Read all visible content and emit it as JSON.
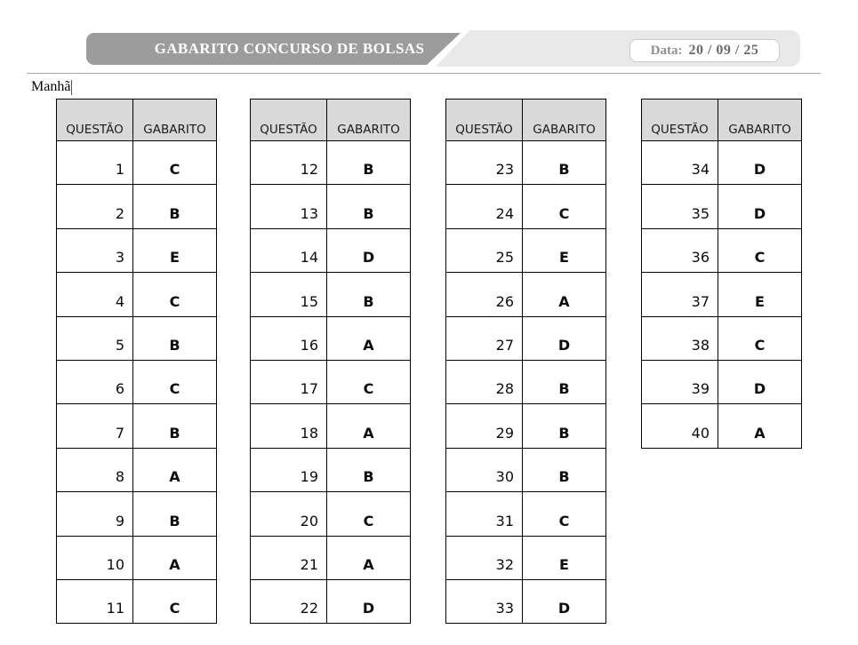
{
  "banner": {
    "title": "GABARITO CONCURSO DE BOLSAS"
  },
  "date": {
    "label": "Data:",
    "value": "20 / 09 / 25"
  },
  "shift_label": "Manhã",
  "columns": {
    "question": "QUESTÃO",
    "answer": "GABARITO"
  },
  "tables": [
    {
      "rows": [
        {
          "q": "1",
          "a": "C"
        },
        {
          "q": "2",
          "a": "B"
        },
        {
          "q": "3",
          "a": "E"
        },
        {
          "q": "4",
          "a": "C"
        },
        {
          "q": "5",
          "a": "B"
        },
        {
          "q": "6",
          "a": "C"
        },
        {
          "q": "7",
          "a": "B"
        },
        {
          "q": "8",
          "a": "A"
        },
        {
          "q": "9",
          "a": "B"
        },
        {
          "q": "10",
          "a": "A"
        },
        {
          "q": "11",
          "a": "C"
        }
      ]
    },
    {
      "rows": [
        {
          "q": "12",
          "a": "B"
        },
        {
          "q": "13",
          "a": "B"
        },
        {
          "q": "14",
          "a": "D"
        },
        {
          "q": "15",
          "a": "B"
        },
        {
          "q": "16",
          "a": "A"
        },
        {
          "q": "17",
          "a": "C"
        },
        {
          "q": "18",
          "a": "A"
        },
        {
          "q": "19",
          "a": "B"
        },
        {
          "q": "20",
          "a": "C"
        },
        {
          "q": "21",
          "a": "A"
        },
        {
          "q": "22",
          "a": "D"
        }
      ]
    },
    {
      "rows": [
        {
          "q": "23",
          "a": "B"
        },
        {
          "q": "24",
          "a": "C"
        },
        {
          "q": "25",
          "a": "E"
        },
        {
          "q": "26",
          "a": "A"
        },
        {
          "q": "27",
          "a": "D"
        },
        {
          "q": "28",
          "a": "B"
        },
        {
          "q": "29",
          "a": "B"
        },
        {
          "q": "30",
          "a": "B"
        },
        {
          "q": "31",
          "a": "C"
        },
        {
          "q": "32",
          "a": "E"
        },
        {
          "q": "33",
          "a": "D"
        }
      ]
    },
    {
      "rows": [
        {
          "q": "34",
          "a": "D"
        },
        {
          "q": "35",
          "a": "D"
        },
        {
          "q": "36",
          "a": "C"
        },
        {
          "q": "37",
          "a": "E"
        },
        {
          "q": "38",
          "a": "C"
        },
        {
          "q": "39",
          "a": "D"
        },
        {
          "q": "40",
          "a": "A"
        }
      ]
    }
  ],
  "colors": {
    "banner_gray": "#9c9c9c",
    "band_light_gray": "#e9e9e9",
    "table_header_gray": "#d9d9d9",
    "border_black": "#000000"
  }
}
